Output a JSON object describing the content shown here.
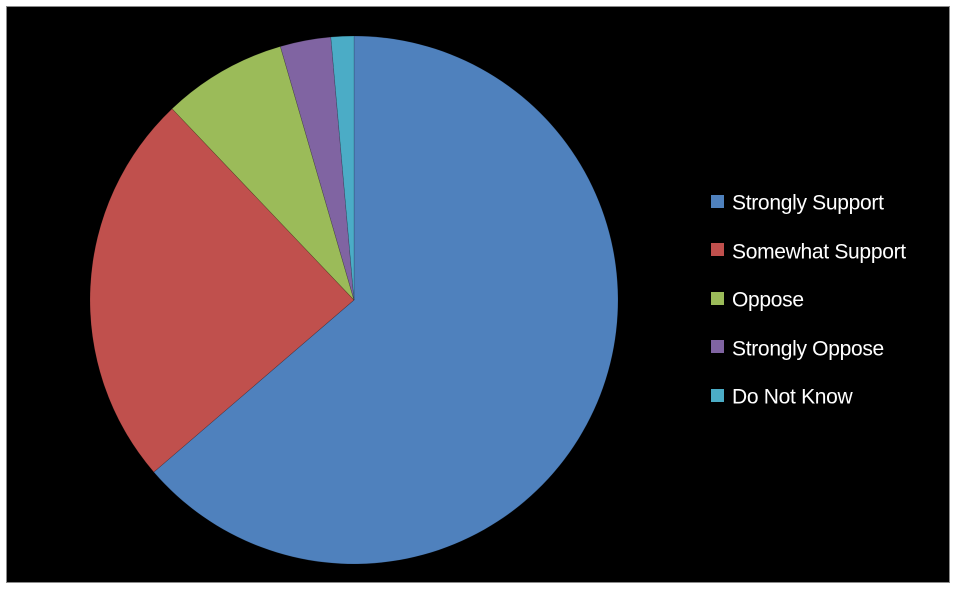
{
  "chart_data": {
    "type": "pie",
    "title": "",
    "start_angle_deg": 0,
    "direction": "clockwise",
    "legend_position": "right",
    "slices": [
      {
        "label": "Strongly Support",
        "value": 63.7,
        "color": "#4f81bd"
      },
      {
        "label": "Somewhat Support",
        "value": 24.2,
        "color": "#c0504d"
      },
      {
        "label": "Oppose",
        "value": 7.6,
        "color": "#9bbb59"
      },
      {
        "label": "Strongly Oppose",
        "value": 3.1,
        "color": "#8064a2"
      },
      {
        "label": "Do Not Know",
        "value": 1.4,
        "color": "#4bacc6"
      }
    ]
  }
}
